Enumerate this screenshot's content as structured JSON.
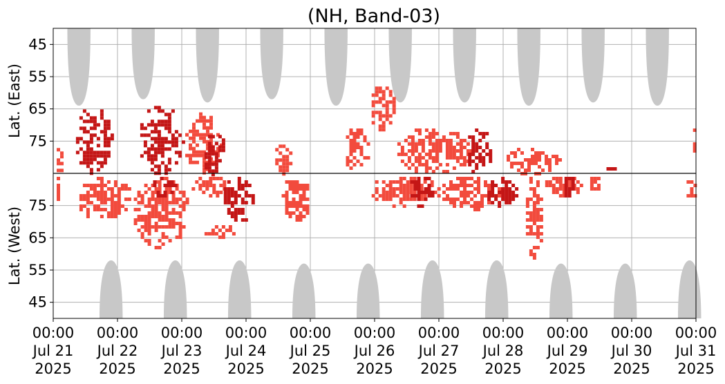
{
  "chart_data": {
    "type": "heatmap",
    "title": "(NH, Band-03)",
    "ylabel_upper": "Lat. (East)",
    "ylabel_lower": "Lat. (West)",
    "x_ticks": [
      {
        "time": "00:00",
        "date": "Jul 21",
        "year": "2025"
      },
      {
        "time": "00:00",
        "date": "Jul 22",
        "year": "2025"
      },
      {
        "time": "00:00",
        "date": "Jul 23",
        "year": "2025"
      },
      {
        "time": "00:00",
        "date": "Jul 24",
        "year": "2025"
      },
      {
        "time": "00:00",
        "date": "Jul 25",
        "year": "2025"
      },
      {
        "time": "00:00",
        "date": "Jul 26",
        "year": "2025"
      },
      {
        "time": "00:00",
        "date": "Jul 27",
        "year": "2025"
      },
      {
        "time": "00:00",
        "date": "Jul 28",
        "year": "2025"
      },
      {
        "time": "00:00",
        "date": "Jul 29",
        "year": "2025"
      },
      {
        "time": "00:00",
        "date": "Jul 30",
        "year": "2025"
      },
      {
        "time": "00:00",
        "date": "Jul 31",
        "year": "2025"
      }
    ],
    "xlim": [
      "2025-07-21 00:00",
      "2025-07-31 00:00"
    ],
    "y_ticks_upper": [
      "45",
      "55",
      "65",
      "75"
    ],
    "y_ticks_lower": [
      "75",
      "65",
      "55",
      "45"
    ],
    "ylim_latitude": [
      40,
      85
    ],
    "grid": true,
    "colors": {
      "night_mask": "#c8c8c8",
      "activity_light": "#f24b3d",
      "activity_dark": "#c41616",
      "divider": "#000000",
      "grid": "#b0b0b0"
    },
    "night_mask_east": [
      {
        "center_day": 0.4,
        "max_lat": 64
      },
      {
        "center_day": 1.4,
        "max_lat": 62
      },
      {
        "center_day": 2.4,
        "max_lat": 63
      },
      {
        "center_day": 3.4,
        "max_lat": 62
      },
      {
        "center_day": 4.4,
        "max_lat": 64
      },
      {
        "center_day": 5.4,
        "max_lat": 63
      },
      {
        "center_day": 6.4,
        "max_lat": 63
      },
      {
        "center_day": 7.4,
        "max_lat": 64
      },
      {
        "center_day": 8.4,
        "max_lat": 63
      },
      {
        "center_day": 9.4,
        "max_lat": 64
      }
    ],
    "night_mask_west": [
      {
        "center_day": 0.9,
        "max_lat": 58
      },
      {
        "center_day": 1.9,
        "max_lat": 58
      },
      {
        "center_day": 2.9,
        "max_lat": 58
      },
      {
        "center_day": 3.9,
        "max_lat": 57
      },
      {
        "center_day": 4.9,
        "max_lat": 57
      },
      {
        "center_day": 5.9,
        "max_lat": 58
      },
      {
        "center_day": 6.9,
        "max_lat": 58
      },
      {
        "center_day": 7.9,
        "max_lat": 57
      },
      {
        "center_day": 8.9,
        "max_lat": 57
      },
      {
        "center_day": 9.9,
        "max_lat": 58
      }
    ],
    "activity_regions": [
      {
        "hemisphere": "east",
        "day_start": 0.0,
        "day_end": 0.15,
        "lat_min": 75,
        "lat_max": 85,
        "level": "light"
      },
      {
        "hemisphere": "east",
        "day_start": 0.3,
        "day_end": 0.9,
        "lat_min": 63,
        "lat_max": 85,
        "level": "dark"
      },
      {
        "hemisphere": "east",
        "day_start": 1.3,
        "day_end": 2.0,
        "lat_min": 63,
        "lat_max": 85,
        "level": "dark"
      },
      {
        "hemisphere": "east",
        "day_start": 2.0,
        "day_end": 2.6,
        "lat_min": 65,
        "lat_max": 85,
        "level": "light"
      },
      {
        "hemisphere": "east",
        "day_start": 2.3,
        "day_end": 2.7,
        "lat_min": 72,
        "lat_max": 85,
        "level": "dark"
      },
      {
        "hemisphere": "east",
        "day_start": 3.4,
        "day_end": 3.7,
        "lat_min": 75,
        "lat_max": 85,
        "level": "light"
      },
      {
        "hemisphere": "east",
        "day_start": 4.5,
        "day_end": 4.9,
        "lat_min": 70,
        "lat_max": 85,
        "level": "light"
      },
      {
        "hemisphere": "east",
        "day_start": 4.9,
        "day_end": 5.3,
        "lat_min": 57,
        "lat_max": 72,
        "level": "light"
      },
      {
        "hemisphere": "east",
        "day_start": 5.3,
        "day_end": 6.5,
        "lat_min": 70,
        "lat_max": 85,
        "level": "light"
      },
      {
        "hemisphere": "east",
        "day_start": 6.4,
        "day_end": 6.8,
        "lat_min": 70,
        "lat_max": 85,
        "level": "dark"
      },
      {
        "hemisphere": "east",
        "day_start": 7.0,
        "day_end": 7.9,
        "lat_min": 76,
        "lat_max": 85,
        "level": "light"
      },
      {
        "hemisphere": "east",
        "day_start": 8.5,
        "day_end": 8.8,
        "lat_min": 82,
        "lat_max": 85,
        "level": "dark"
      },
      {
        "hemisphere": "east",
        "day_start": 9.9,
        "day_end": 10.0,
        "lat_min": 70,
        "lat_max": 78,
        "level": "light"
      },
      {
        "hemisphere": "west",
        "day_start": 0.0,
        "day_end": 0.1,
        "lat_min": 75,
        "lat_max": 85,
        "level": "light"
      },
      {
        "hemisphere": "west",
        "day_start": 0.3,
        "day_end": 1.2,
        "lat_min": 71,
        "lat_max": 85,
        "level": "light"
      },
      {
        "hemisphere": "west",
        "day_start": 1.2,
        "day_end": 2.1,
        "lat_min": 62,
        "lat_max": 85,
        "level": "light"
      },
      {
        "hemisphere": "west",
        "day_start": 1.5,
        "day_end": 1.9,
        "lat_min": 78,
        "lat_max": 85,
        "level": "dark"
      },
      {
        "hemisphere": "west",
        "day_start": 2.1,
        "day_end": 2.7,
        "lat_min": 78,
        "lat_max": 85,
        "level": "light"
      },
      {
        "hemisphere": "west",
        "day_start": 2.3,
        "day_end": 2.8,
        "lat_min": 65,
        "lat_max": 70,
        "level": "light"
      },
      {
        "hemisphere": "west",
        "day_start": 2.6,
        "day_end": 3.1,
        "lat_min": 70,
        "lat_max": 85,
        "level": "dark"
      },
      {
        "hemisphere": "west",
        "day_start": 3.5,
        "day_end": 4.0,
        "lat_min": 70,
        "lat_max": 85,
        "level": "light"
      },
      {
        "hemisphere": "west",
        "day_start": 4.9,
        "day_end": 6.0,
        "lat_min": 75,
        "lat_max": 85,
        "level": "light"
      },
      {
        "hemisphere": "west",
        "day_start": 5.5,
        "day_end": 5.9,
        "lat_min": 75,
        "lat_max": 85,
        "level": "dark"
      },
      {
        "hemisphere": "west",
        "day_start": 6.0,
        "day_end": 7.0,
        "lat_min": 74,
        "lat_max": 85,
        "level": "light"
      },
      {
        "hemisphere": "west",
        "day_start": 6.7,
        "day_end": 7.2,
        "lat_min": 74,
        "lat_max": 85,
        "level": "dark"
      },
      {
        "hemisphere": "west",
        "day_start": 7.3,
        "day_end": 7.6,
        "lat_min": 59,
        "lat_max": 85,
        "level": "light"
      },
      {
        "hemisphere": "west",
        "day_start": 7.6,
        "day_end": 8.2,
        "lat_min": 78,
        "lat_max": 85,
        "level": "light"
      },
      {
        "hemisphere": "west",
        "day_start": 7.9,
        "day_end": 8.1,
        "lat_min": 78,
        "lat_max": 85,
        "level": "dark"
      },
      {
        "hemisphere": "west",
        "day_start": 8.3,
        "day_end": 8.5,
        "lat_min": 79,
        "lat_max": 85,
        "level": "light"
      },
      {
        "hemisphere": "west",
        "day_start": 9.8,
        "day_end": 10.0,
        "lat_min": 77,
        "lat_max": 85,
        "level": "light"
      }
    ]
  }
}
